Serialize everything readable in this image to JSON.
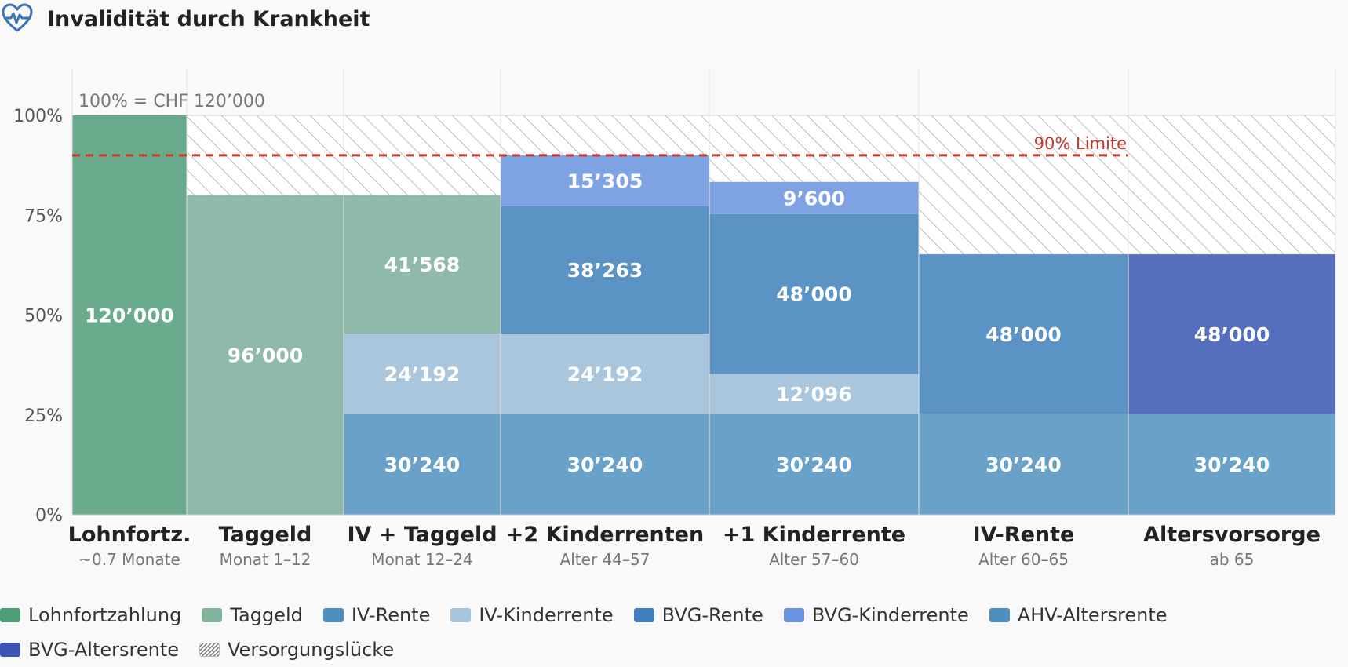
{
  "header": {
    "title": "Invalidität durch Krankheit",
    "icon": "heart-pulse-icon"
  },
  "chart_data": {
    "type": "bar",
    "subtype": "stacked-variable-width",
    "reference_label": "100% = CHF 120’000",
    "reference_value": 120000,
    "limit": {
      "label": "90% Limite",
      "value": 108000,
      "color": "#c0392b"
    },
    "ylim": [
      0,
      120000
    ],
    "y_ticks": [
      {
        "value": 0,
        "label": "0%"
      },
      {
        "value": 30000,
        "label": "25%"
      },
      {
        "value": 60000,
        "label": "50%"
      },
      {
        "value": 90000,
        "label": "75%"
      },
      {
        "value": 120000,
        "label": "100%"
      }
    ],
    "grid": true,
    "legend_position": "bottom",
    "categories": [
      {
        "label": "Lohnfortz.",
        "sublabel": "~0.7 Monate",
        "segments": [
          {
            "series": "Lohnfortzahlung",
            "value": 120000,
            "label": "120’000"
          }
        ]
      },
      {
        "label": "Taggeld",
        "sublabel": "Monat 1–12",
        "segments": [
          {
            "series": "Taggeld",
            "value": 96000,
            "label": "96’000"
          }
        ]
      },
      {
        "label": "IV + Taggeld",
        "sublabel": "Monat 12–24",
        "segments": [
          {
            "series": "IV-Rente",
            "value": 30240,
            "label": "30’240"
          },
          {
            "series": "IV-Kinderrente",
            "value": 24192,
            "label": "24’192"
          },
          {
            "series": "Taggeld",
            "value": 41568,
            "label": "41’568"
          }
        ]
      },
      {
        "label": "+2 Kinderrenten",
        "sublabel": "Alter 44–57",
        "segments": [
          {
            "series": "IV-Rente",
            "value": 30240,
            "label": "30’240"
          },
          {
            "series": "IV-Kinderrente",
            "value": 24192,
            "label": "24’192"
          },
          {
            "series": "BVG-Rente",
            "value": 38263,
            "label": "38’263"
          },
          {
            "series": "BVG-Kinderrente",
            "value": 15305,
            "label": "15’305"
          }
        ]
      },
      {
        "label": "+1 Kinderrente",
        "sublabel": "Alter 57–60",
        "segments": [
          {
            "series": "IV-Rente",
            "value": 30240,
            "label": "30’240"
          },
          {
            "series": "IV-Kinderrente",
            "value": 12096,
            "label": "12’096"
          },
          {
            "series": "BVG-Rente",
            "value": 48000,
            "label": "48’000"
          },
          {
            "series": "BVG-Kinderrente",
            "value": 9600,
            "label": "9’600"
          }
        ]
      },
      {
        "label": "IV-Rente",
        "sublabel": "Alter 60–65",
        "segments": [
          {
            "series": "IV-Rente",
            "value": 30240,
            "label": "30’240"
          },
          {
            "series": "BVG-Rente",
            "value": 48000,
            "label": "48’000"
          }
        ]
      },
      {
        "label": "Altersvorsorge",
        "sublabel": "ab 65",
        "segments": [
          {
            "series": "AHV-Altersrente",
            "value": 30240,
            "label": "30’240"
          },
          {
            "series": "BVG-Altersrente",
            "value": 48000,
            "label": "48’000"
          }
        ]
      }
    ],
    "series_colors": {
      "Lohnfortzahlung": "#6aab8e",
      "Taggeld": "#8fbaa9",
      "IV-Rente": "#6aa1c8",
      "IV-Kinderrente": "#a9c6dd",
      "BVG-Rente": "#5b93c4",
      "BVG-Kinderrente": "#7fa2e2",
      "AHV-Altersrente": "#6aa1c8",
      "BVG-Altersrente": "#566fbd"
    },
    "legend": [
      {
        "label": "Lohnfortzahlung",
        "color": "#4e9e78"
      },
      {
        "label": "Taggeld",
        "color": "#7fb39c"
      },
      {
        "label": "IV-Rente",
        "color": "#4f8fc0"
      },
      {
        "label": "IV-Kinderrente",
        "color": "#a5c4de"
      },
      {
        "label": "BVG-Rente",
        "color": "#3f7fbb"
      },
      {
        "label": "BVG-Kinderrente",
        "color": "#6b93e0"
      },
      {
        "label": "AHV-Altersrente",
        "color": "#4f8fc0"
      },
      {
        "label": "BVG-Altersrente",
        "color": "#3a53b5"
      },
      {
        "label": "Versorgungslücke",
        "color": "hatch"
      }
    ]
  }
}
